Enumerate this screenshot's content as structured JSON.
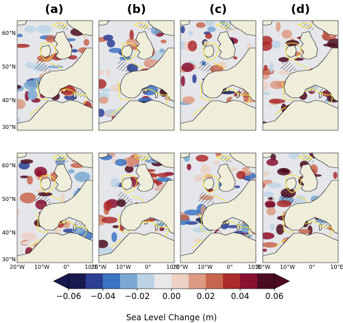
{
  "panel_labels": [
    "(a)",
    "(b)",
    "(c)",
    "(d)"
  ],
  "lat_labels": [
    "60°N",
    "50°N",
    "40°N",
    "30°N"
  ],
  "lon_labels": [
    "20°W",
    "10°W",
    "0°",
    "10°E"
  ],
  "colorbar": {
    "title": "Sea Level Change (m)",
    "tick_labels": [
      "−0.06",
      "−0.04",
      "−0.02",
      "0.00",
      "0.02",
      "0.04",
      "0.06"
    ],
    "ticks": [
      -0.06,
      -0.04,
      -0.02,
      0.0,
      0.02,
      0.04,
      0.06
    ],
    "colors": [
      "#17194f",
      "#2c3f94",
      "#3d73c3",
      "#7aa8d2",
      "#bdd4e6",
      "#e8e8ea",
      "#ecd1c4",
      "#dc9a82",
      "#c8654e",
      "#ad2b2b",
      "#8a1030",
      "#4c0b1f"
    ],
    "range": [
      -0.06,
      0.06
    ],
    "extend": "both"
  },
  "map": {
    "land_color": "#efeedb",
    "ocean_color": "#e4e6ea",
    "coastline_color": "#000000",
    "contour_color": "#f4e63a",
    "grid_rows": 2,
    "grid_cols": 4
  }
}
